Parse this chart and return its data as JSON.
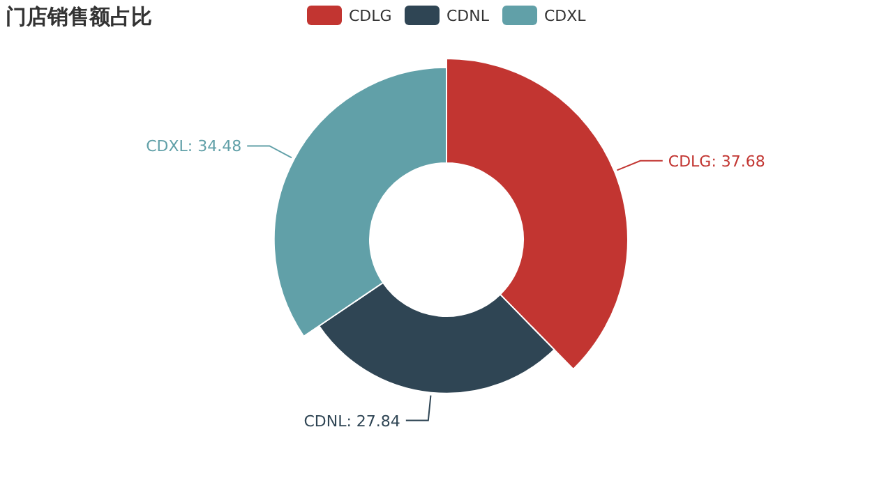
{
  "chart_data": {
    "type": "donut",
    "title": "门店销售额占比",
    "categories": [
      "CDLG",
      "CDNL",
      "CDXL"
    ],
    "values": [
      37.68,
      27.84,
      34.48
    ],
    "colors": [
      "#c23531",
      "#2f4554",
      "#61a0a8"
    ],
    "value_labels": [
      "CDLG: 37.68",
      "CDNL: 27.84",
      "CDXL: 34.48"
    ],
    "legend": "top"
  }
}
